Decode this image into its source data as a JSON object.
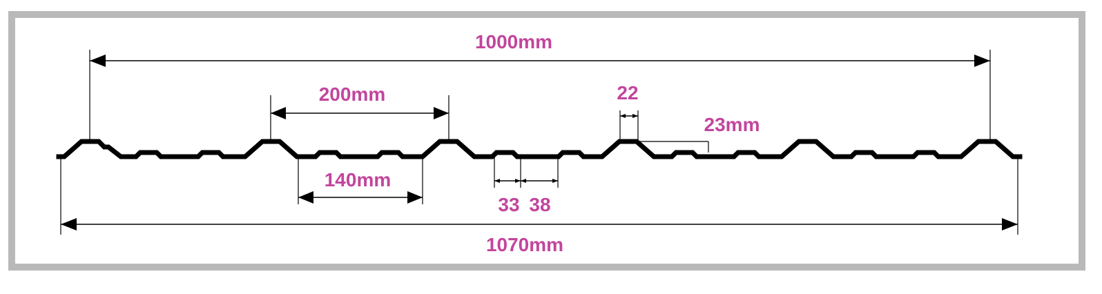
{
  "diagram": {
    "type": "roofing-sheet-profile",
    "border_color": "#b9b9b9",
    "label_color": "#c2459d",
    "line_color": "#000000",
    "dimensions": {
      "cover_width": "1000mm",
      "rib_pitch": "200mm",
      "pan_width": "140mm",
      "rib_top": "22",
      "rib_height": "23mm",
      "minor_rib_a": "33",
      "minor_rib_b": "38",
      "overall_width": "1070mm"
    }
  }
}
